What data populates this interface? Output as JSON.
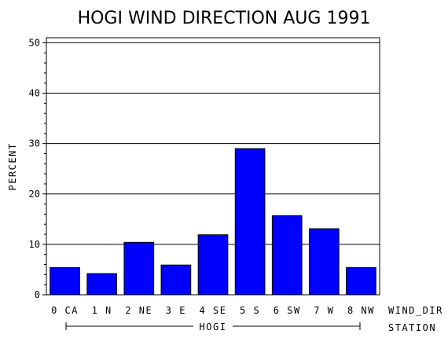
{
  "chart_data": {
    "type": "bar",
    "title": "HOGI WIND DIRECTION AUG 1991",
    "ylabel": "PERCENT",
    "xlabel": "WIND_DIR",
    "group_axis_label": "STATION",
    "group_label": "HOGI",
    "ylim": [
      0,
      51
    ],
    "yticks": [
      0,
      10,
      20,
      30,
      40,
      50
    ],
    "categories": [
      "0 CA",
      "1 N",
      "2 NE",
      "3 E",
      "4 SE",
      "5 S",
      "6 SW",
      "7 W",
      "8 NW"
    ],
    "values": [
      5.4,
      4.2,
      10.4,
      5.9,
      11.9,
      29.0,
      15.7,
      13.1,
      5.4
    ],
    "bar_color": "#0000ff",
    "grid": true
  }
}
